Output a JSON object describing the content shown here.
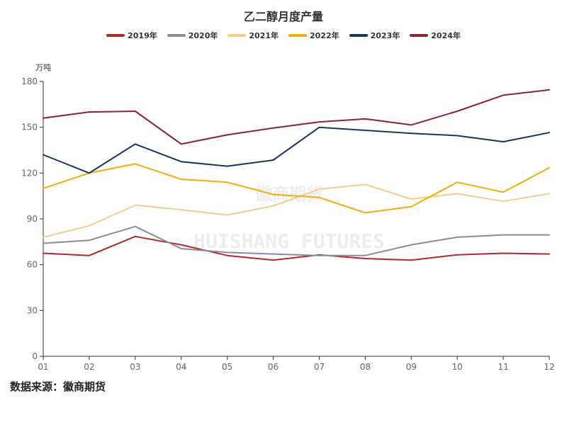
{
  "chart_data": {
    "type": "line",
    "title": "乙二醇月度产量",
    "ylabel": "万吨",
    "xlabel": "",
    "ylim": [
      0,
      180
    ],
    "yticks": [
      0,
      30,
      60,
      90,
      120,
      150,
      180
    ],
    "categories": [
      "01",
      "02",
      "03",
      "04",
      "05",
      "06",
      "07",
      "08",
      "09",
      "10",
      "11",
      "12"
    ],
    "legend_position": "top-center",
    "grid": false,
    "series": [
      {
        "name": "2019年",
        "color": "#B22A25",
        "values": [
          67.5,
          66,
          78.5,
          73,
          66,
          63,
          66.5,
          64,
          63,
          66.5,
          67.5,
          67
        ]
      },
      {
        "name": "2020年",
        "color": "#8A8D95",
        "values": [
          74,
          76,
          85,
          70.5,
          68,
          67,
          66,
          66,
          73,
          78,
          79.5,
          79.5
        ]
      },
      {
        "name": "2021年",
        "color": "#F4CE8C",
        "values": [
          78,
          85.5,
          99,
          96,
          92.5,
          98.5,
          109.5,
          112.5,
          103,
          106.5,
          101.5,
          106.5
        ]
      },
      {
        "name": "2022年",
        "color": "#EFAE0C",
        "values": [
          110,
          120,
          126,
          116,
          114,
          106,
          104,
          94,
          98,
          114,
          107.5,
          123.5
        ]
      },
      {
        "name": "2023年",
        "color": "#17375E",
        "values": [
          132,
          120,
          139,
          127.5,
          124.5,
          128.5,
          150,
          148,
          146,
          144.5,
          140.5,
          146.5
        ]
      },
      {
        "name": "2024年",
        "color": "#8B2335",
        "values": [
          156,
          160,
          160.5,
          139,
          145,
          149.5,
          153.5,
          155.5,
          151.5,
          160.5,
          171,
          174.5
        ]
      }
    ]
  },
  "watermark": {
    "cn": "徽商期货",
    "en": "HUISHANG FUTURES"
  },
  "source_note": "数据来源：徽商期货"
}
